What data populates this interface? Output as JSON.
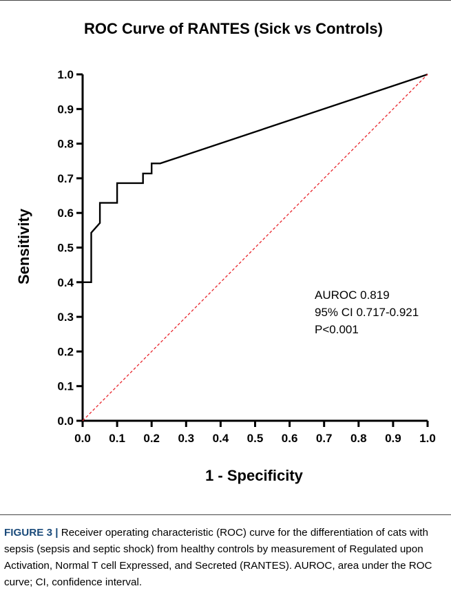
{
  "chart_data": {
    "type": "line",
    "title": "ROC Curve of RANTES (Sick vs Controls)",
    "xlabel": "1 - Specificity",
    "ylabel": "Sensitivity",
    "xlim": [
      0.0,
      1.0
    ],
    "ylim": [
      0.0,
      1.0
    ],
    "x_ticks": [
      "0.0",
      "0.1",
      "0.2",
      "0.3",
      "0.4",
      "0.5",
      "0.6",
      "0.7",
      "0.8",
      "0.9",
      "1.0"
    ],
    "y_ticks": [
      "0.0",
      "0.1",
      "0.2",
      "0.3",
      "0.4",
      "0.5",
      "0.6",
      "0.7",
      "0.8",
      "0.9",
      "1.0"
    ],
    "grid": false,
    "series": [
      {
        "color": "#000000",
        "x": [
          0.0,
          0.0,
          0.025,
          0.025,
          0.05,
          0.05,
          0.1,
          0.1,
          0.175,
          0.175,
          0.2,
          0.2,
          0.225,
          1.0
        ],
        "y": [
          0.4,
          0.4,
          0.4,
          0.543,
          0.571,
          0.629,
          0.629,
          0.686,
          0.686,
          0.714,
          0.714,
          0.743,
          0.743,
          1.0
        ]
      },
      {
        "color": "#e8232a",
        "dashed": true,
        "x": [
          0.0,
          1.0
        ],
        "y": [
          0.0,
          1.0
        ]
      }
    ],
    "annotations": [
      "AUROC 0.819",
      "95% CI 0.717-0.921",
      "P<0.001"
    ]
  },
  "caption": {
    "label": "FIGURE 3 |",
    "text": " Receiver operating characteristic (ROC) curve for the differentiation of cats with sepsis (sepsis and septic shock) from healthy controls by measurement of Regulated upon Activation, Normal T cell Expressed, and Secreted (RANTES). AUROC, area under the ROC curve; CI, confidence interval."
  }
}
